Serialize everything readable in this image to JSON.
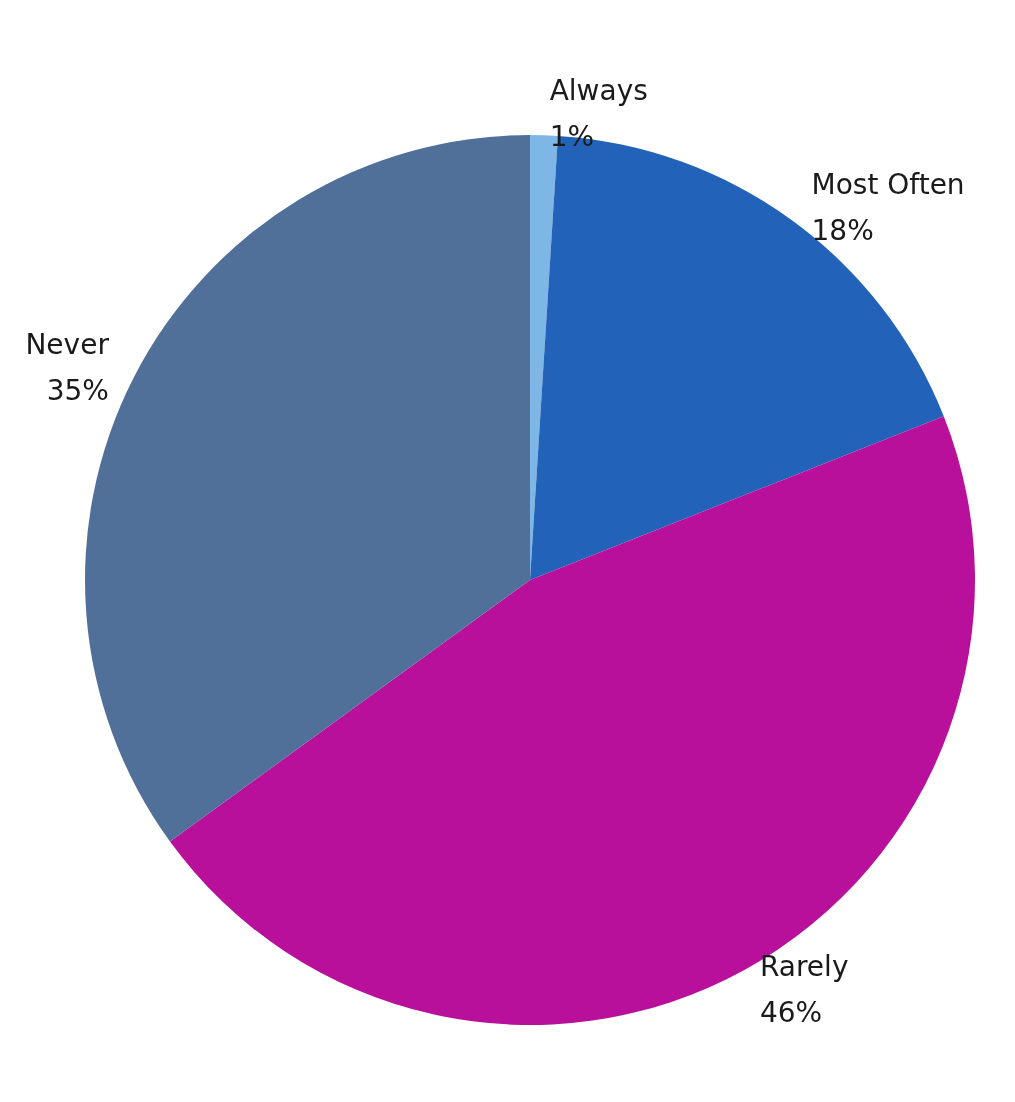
{
  "chart_data": {
    "type": "pie",
    "categories": [
      "Always",
      "Most Often",
      "Rarely",
      "Never"
    ],
    "values": [
      1,
      18,
      46,
      35
    ],
    "value_labels": [
      "1%",
      "18%",
      "46%",
      "35%"
    ],
    "colors": [
      "#7eb6e6",
      "#2262b8",
      "#b9109b",
      "#506f99"
    ],
    "legend": false
  }
}
